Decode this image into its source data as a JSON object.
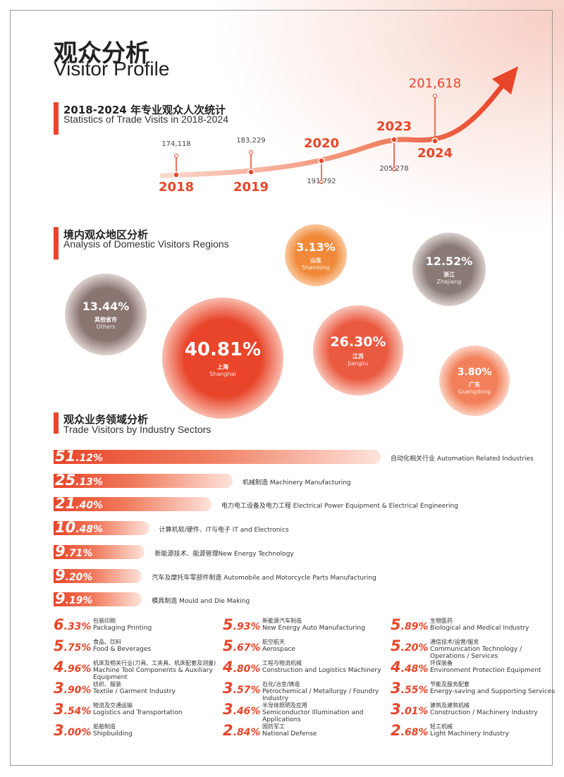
{
  "header": {
    "title_zh": "观众分析",
    "title_en": "Visitor Profile"
  },
  "trend": {
    "title_zh": "2018-2024 年专业观众人次统计",
    "title_en": "Statistics of Trade Visits in 2018-2024",
    "points": [
      {
        "year": "2018",
        "visits": "174,118"
      },
      {
        "year": "2019",
        "visits": "183,229"
      },
      {
        "year": "2020",
        "visits": "191,792"
      },
      {
        "year": "2023",
        "visits": "205,278"
      },
      {
        "year": "2024",
        "visits": "201,618"
      }
    ]
  },
  "regions": {
    "title_zh": "境内观众地区分析",
    "title_en": "Analysis of Domestic Visitors Regions",
    "items": [
      {
        "share": "3.13%",
        "zh": "山东",
        "en": "Shandong"
      },
      {
        "share": "12.52%",
        "zh": "浙江",
        "en": "Zhejiang"
      },
      {
        "share": "13.44%",
        "zh": "其他省市",
        "en": "Others"
      },
      {
        "share": "40.81%",
        "zh": "上海",
        "en": "Shanghai"
      },
      {
        "share": "26.30%",
        "zh": "江苏",
        "en": "Jiangsu"
      },
      {
        "share": "3.80%",
        "zh": "广东",
        "en": "Guangdong"
      }
    ]
  },
  "sectors": {
    "title_zh": "观众业务领域分析",
    "title_en": "Trade Visitors by Industry Sectors",
    "bars": [
      {
        "value": 51.12,
        "label": "51.12%",
        "name": "自动化相关行业 Automation Related Industries"
      },
      {
        "value": 25.13,
        "label": "25.13%",
        "name": "机械制造 Machinery Manufacturing"
      },
      {
        "value": 21.4,
        "label": "21.40%",
        "name": "电力电工设备及电力工程 Electrical Power Equipment & Electrical Engineering"
      },
      {
        "value": 10.48,
        "label": "10.48%",
        "name": "计算机软/硬件、IT与电子 IT and Electronics"
      },
      {
        "value": 9.71,
        "label": "9.71%",
        "name": "新能源技术、能源管理New Energy Technology"
      },
      {
        "value": 9.2,
        "label": "9.20%",
        "name": "汽车及摩托车零部件制造 Automobile and Motorcycle Parts Manufacturing"
      },
      {
        "value": 9.19,
        "label": "9.19%",
        "name": "模具制造 Mould and Die Making"
      }
    ],
    "columns": [
      [
        {
          "label": "6.33%",
          "zh": "包装印刷",
          "en": "Packaging Printing"
        },
        {
          "label": "5.75%",
          "zh": "食品、饮料",
          "en": "Food & Beverages"
        },
        {
          "label": "4.96%",
          "zh": "机床及相关行业(刀具、工夹具、机床配套及测量)",
          "en": "Machine Tool Components & Auxiliary Equipment"
        },
        {
          "label": "3.90%",
          "zh": "纺织、服装",
          "en": "Textile / Garment Industry"
        },
        {
          "label": "3.54%",
          "zh": "物流及交通运输",
          "en": "Logistics and Transportation"
        },
        {
          "label": "3.00%",
          "zh": "船舶制造",
          "en": "Shipbuilding"
        }
      ],
      [
        {
          "label": "5.93%",
          "zh": "新能源汽车制造",
          "en": "New Energy Auto Manufacturing"
        },
        {
          "label": "5.67%",
          "zh": "航空航天",
          "en": "Aerospace"
        },
        {
          "label": "4.80%",
          "zh": "工程与物流机械",
          "en": "Construction and Logistics Machinery"
        },
        {
          "label": "3.57%",
          "zh": "石化/冶金/铸造",
          "en": "Petrochemical / Metallurgy / Foundry Industry"
        },
        {
          "label": "3.46%",
          "zh": "半导体照明及应用",
          "en": "Semiconductor Illumination and Applications"
        },
        {
          "label": "2.84%",
          "zh": "国防军工",
          "en": "National Defense"
        }
      ],
      [
        {
          "label": "5.89%",
          "zh": "生物医药",
          "en": "Biological and Medical Industry"
        },
        {
          "label": "5.20%",
          "zh": "通信技术/运营/服务",
          "en": "Communication Technology / Operations / Services"
        },
        {
          "label": "4.48%",
          "zh": "环保装备",
          "en": "Environment Protection Equipment"
        },
        {
          "label": "3.55%",
          "zh": "节能及服务配套",
          "en": "Energy-saving and Supporting Services"
        },
        {
          "label": "3.01%",
          "zh": "建筑及建筑机械",
          "en": "Construction / Machinery Industry"
        },
        {
          "label": "2.68%",
          "zh": "轻工机械",
          "en": "Light Machinery Industry"
        }
      ]
    ]
  }
}
